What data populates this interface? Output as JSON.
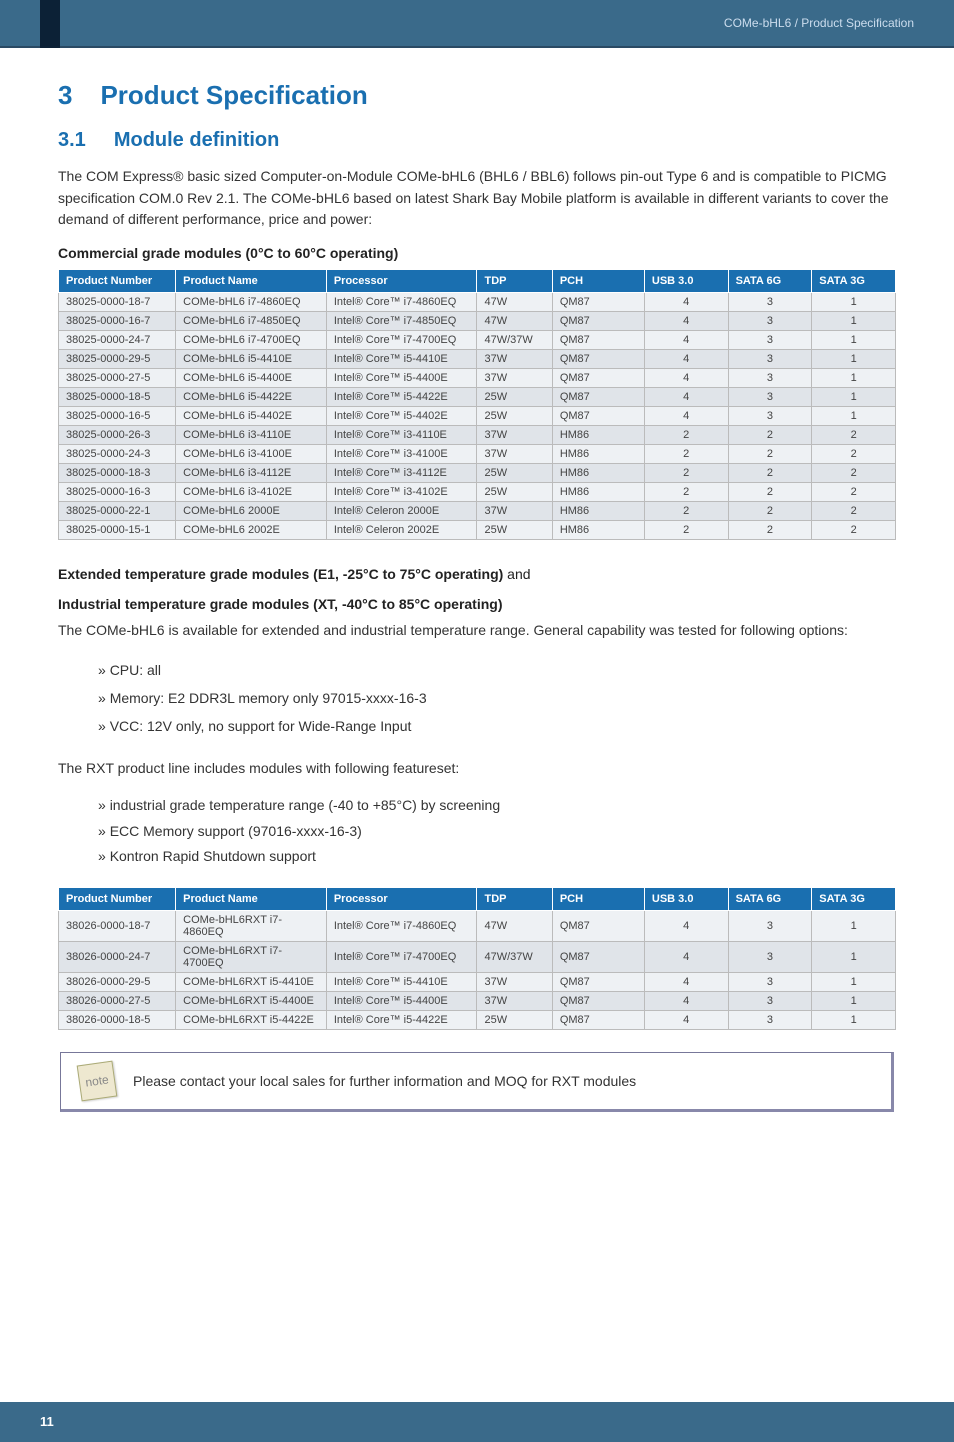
{
  "header": {
    "breadcrumb": "COMe-bHL6 / Product Specification"
  },
  "h1": {
    "num": "3",
    "text": "Product Specification"
  },
  "h2": {
    "num": "3.1",
    "text": "Module definition"
  },
  "intro": "The COM Express® basic sized Computer-on-Module COMe-bHL6 (BHL6 / BBL6) follows pin-out Type 6 and is compatible to PICMG specification COM.0 Rev 2.1. The COMe-bHL6 based on latest Shark Bay Mobile platform is available in different variants to cover the demand of different performance, price and power:",
  "table1_title": "Commercial grade modules (0°C to 60°C operating)",
  "table_headers": {
    "c0": "Product Number",
    "c1": "Product Name",
    "c2": "Processor",
    "c3": "TDP",
    "c4": "PCH",
    "c5": "USB 3.0",
    "c6": "SATA 6G",
    "c7": "SATA 3G"
  },
  "table1_rows": [
    [
      "38025-0000-18-7",
      "COMe-bHL6 i7-4860EQ",
      "Intel® Core™ i7-4860EQ",
      "47W",
      "QM87",
      "4",
      "3",
      "1"
    ],
    [
      "38025-0000-16-7",
      "COMe-bHL6 i7-4850EQ",
      "Intel® Core™ i7-4850EQ",
      "47W",
      "QM87",
      "4",
      "3",
      "1"
    ],
    [
      "38025-0000-24-7",
      "COMe-bHL6 i7-4700EQ",
      "Intel® Core™ i7-4700EQ",
      "47W/37W",
      "QM87",
      "4",
      "3",
      "1"
    ],
    [
      "38025-0000-29-5",
      "COMe-bHL6 i5-4410E",
      "Intel® Core™ i5-4410E",
      "37W",
      "QM87",
      "4",
      "3",
      "1"
    ],
    [
      "38025-0000-27-5",
      "COMe-bHL6 i5-4400E",
      "Intel® Core™ i5-4400E",
      "37W",
      "QM87",
      "4",
      "3",
      "1"
    ],
    [
      "38025-0000-18-5",
      "COMe-bHL6 i5-4422E",
      "Intel® Core™ i5-4422E",
      "25W",
      "QM87",
      "4",
      "3",
      "1"
    ],
    [
      "38025-0000-16-5",
      "COMe-bHL6 i5-4402E",
      "Intel® Core™ i5-4402E",
      "25W",
      "QM87",
      "4",
      "3",
      "1"
    ],
    [
      "38025-0000-26-3",
      "COMe-bHL6 i3-4110E",
      "Intel® Core™ i3-4110E",
      "37W",
      "HM86",
      "2",
      "2",
      "2"
    ],
    [
      "38025-0000-24-3",
      "COMe-bHL6 i3-4100E",
      "Intel® Core™ i3-4100E",
      "37W",
      "HM86",
      "2",
      "2",
      "2"
    ],
    [
      "38025-0000-18-3",
      "COMe-bHL6 i3-4112E",
      "Intel® Core™ i3-4112E",
      "25W",
      "HM86",
      "2",
      "2",
      "2"
    ],
    [
      "38025-0000-16-3",
      "COMe-bHL6 i3-4102E",
      "Intel® Core™ i3-4102E",
      "25W",
      "HM86",
      "2",
      "2",
      "2"
    ],
    [
      "38025-0000-22-1",
      "COMe-bHL6 2000E",
      "Intel® Celeron 2000E",
      "37W",
      "HM86",
      "2",
      "2",
      "2"
    ],
    [
      "38025-0000-15-1",
      "COMe-bHL6 2002E",
      "Intel® Celeron 2002E",
      "25W",
      "HM86",
      "2",
      "2",
      "2"
    ]
  ],
  "ext_title": "Extended temperature grade modules (E1, -25°C to 75°C operating)",
  "ext_and": " and",
  "ind_title": "Industrial temperature grade modules (XT, -40°C to 85°C operating)",
  "ext_desc": "The COMe-bHL6 is available for extended and industrial temperature range. General capability was tested for following options:",
  "list1": {
    "i0": "CPU: all",
    "i1": "Memory: E2 DDR3L memory only 97015-xxxx-16-3",
    "i2": "VCC: 12V only, no support for Wide-Range Input"
  },
  "rxt_intro": "The RXT product line includes modules with following featureset:",
  "list2": {
    "i0": "industrial grade temperature range (-40 to +85°C) by screening",
    "i1": "ECC Memory support (97016-xxxx-16-3)",
    "i2": "Kontron Rapid Shutdown support"
  },
  "table2_rows": [
    [
      "38026-0000-18-7",
      "COMe-bHL6RXT i7-4860EQ",
      "Intel® Core™ i7-4860EQ",
      "47W",
      "QM87",
      "4",
      "3",
      "1"
    ],
    [
      "38026-0000-24-7",
      "COMe-bHL6RXT i7-4700EQ",
      "Intel® Core™ i7-4700EQ",
      "47W/37W",
      "QM87",
      "4",
      "3",
      "1"
    ],
    [
      "38026-0000-29-5",
      "COMe-bHL6RXT i5-4410E",
      "Intel® Core™ i5-4410E",
      "37W",
      "QM87",
      "4",
      "3",
      "1"
    ],
    [
      "38026-0000-27-5",
      "COMe-bHL6RXT i5-4400E",
      "Intel® Core™ i5-4400E",
      "37W",
      "QM87",
      "4",
      "3",
      "1"
    ],
    [
      "38026-0000-18-5",
      "COMe-bHL6RXT i5-4422E",
      "Intel® Core™ i5-4422E",
      "25W",
      "QM87",
      "4",
      "3",
      "1"
    ]
  ],
  "note_text": "Please contact your local sales for further information and MOQ for RXT modules",
  "note_icon": "note",
  "page_num": "11",
  "colwidths": [
    "14%",
    "18%",
    "18%",
    "9%",
    "11%",
    "10%",
    "10%",
    "10%"
  ],
  "colors": {
    "header_bg": "#3a6a8a",
    "heading": "#1a6fb0",
    "th_bg": "#1a6fb0",
    "row_odd": "#eef1f4",
    "row_even": "#e0e4e9"
  }
}
